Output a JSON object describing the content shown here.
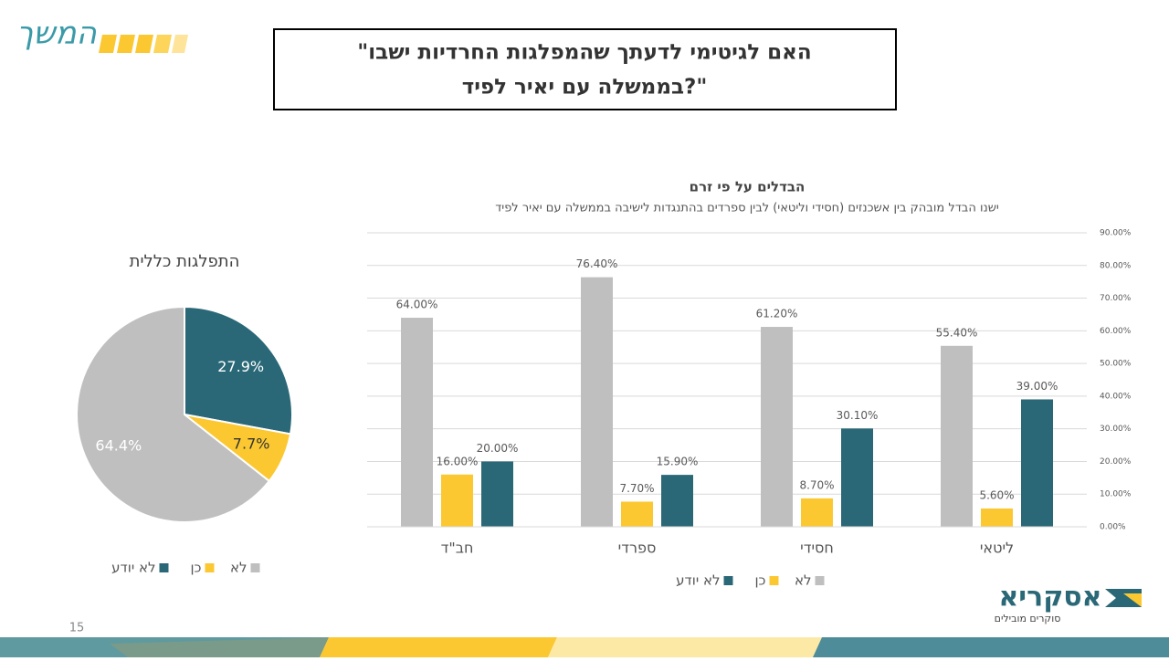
{
  "slide": {
    "section": "המשך",
    "title_line1": "\"האם לגיטימי לדעתך שהמפלגות החרדיות ישבו",
    "title_line2": "בממשלה עם יאיר לפיד?\"",
    "page_number": "15",
    "logo": "אסקריא",
    "logo_tagline": "סוקרים מובילים"
  },
  "chart_data": [
    {
      "type": "pie",
      "title": "התפלגות כללית",
      "categories": [
        "לא",
        "כן",
        "לא יודע"
      ],
      "values": [
        64.4,
        7.7,
        27.9
      ],
      "value_labels": [
        "64.4%",
        "7.7%",
        "27.9%"
      ],
      "colors": [
        "#bfbfbf",
        "#fbc832",
        "#2a6877"
      ],
      "label_colors": [
        "#ffffff",
        "#333333",
        "#ffffff"
      ],
      "legend": "bottom"
    },
    {
      "type": "bar",
      "title": "הבדלים על פי זרם",
      "subtitle": "ישנו הבדל מובהק בין אשכנזים (חסידי וליטאי) לבין ספרדים בהתנגדות לישיבה בממשלה עם יאיר לפיד",
      "categories": [
        "חב\"ד",
        "ספרדי",
        "חסידי",
        "ליטאי"
      ],
      "series": [
        {
          "name": "לא",
          "color": "#bfbfbf",
          "values": [
            64.0,
            76.4,
            61.2,
            55.4
          ],
          "value_labels": [
            "64.00%",
            "76.40%",
            "61.20%",
            "55.40%"
          ]
        },
        {
          "name": "כן",
          "color": "#fbc832",
          "values": [
            16.0,
            7.7,
            8.7,
            5.6
          ],
          "value_labels": [
            "16.00%",
            "7.70%",
            "8.70%",
            "5.60%"
          ]
        },
        {
          "name": "לא יודע",
          "color": "#2a6877",
          "values": [
            20.0,
            15.9,
            30.1,
            39.0
          ],
          "value_labels": [
            "20.00%",
            "15.90%",
            "30.10%",
            "39.00%"
          ]
        }
      ],
      "ylim": [
        0,
        90
      ],
      "yticks": [
        {
          "value": 0,
          "label": "0.00%"
        },
        {
          "value": 10,
          "label": "10.00%"
        },
        {
          "value": 20,
          "label": "20.00%"
        },
        {
          "value": 30,
          "label": "30.00%"
        },
        {
          "value": 40,
          "label": "40.00%"
        },
        {
          "value": 50,
          "label": "50.00%"
        },
        {
          "value": 60,
          "label": "60.00%"
        },
        {
          "value": 70,
          "label": "70.00%"
        },
        {
          "value": 80,
          "label": "80.00%"
        },
        {
          "value": 90,
          "label": "90.00%"
        }
      ],
      "grid": true,
      "legend": "bottom"
    }
  ]
}
